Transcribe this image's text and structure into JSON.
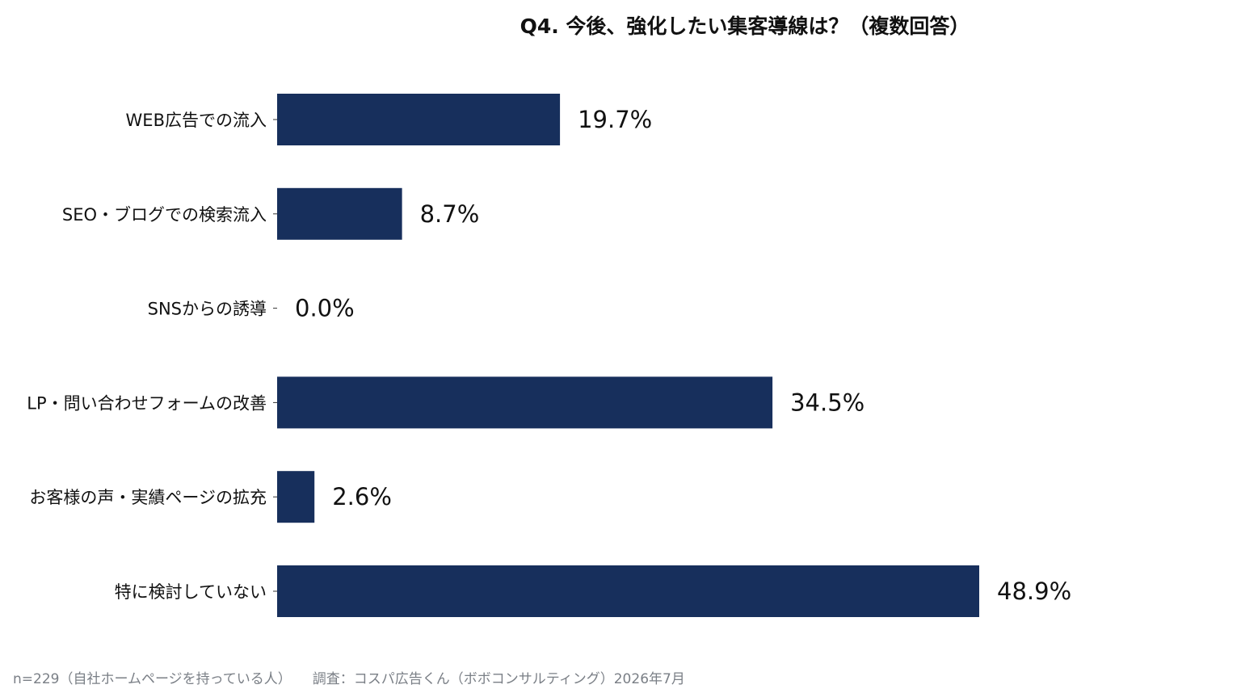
{
  "chart_data": {
    "type": "bar",
    "orientation": "horizontal",
    "title": "Q4. 今後、強化したい集客導線は？（複数回答）",
    "categories": [
      "WEB広告での流入",
      "SEO・ブログでの検索流入",
      "SNSからの誘導",
      "LP・問い合わせフォームの改善",
      "お客様の声・実績ページの拡充",
      "特に検討していない"
    ],
    "values": [
      19.7,
      8.7,
      0.0,
      34.5,
      2.6,
      48.9
    ],
    "value_labels": [
      "19.7%",
      "8.7%",
      "0.0%",
      "34.5%",
      "2.6%",
      "48.9%"
    ],
    "unit": "%",
    "xlim": [
      0,
      50
    ],
    "grid": false,
    "legend": "none",
    "bar_color": "#172f5c"
  },
  "footnote": {
    "sample": "n=229（自社ホームページを持っている人）",
    "source": "調査：コスパ広告くん（ボボコンサルティング）2026年7月"
  }
}
